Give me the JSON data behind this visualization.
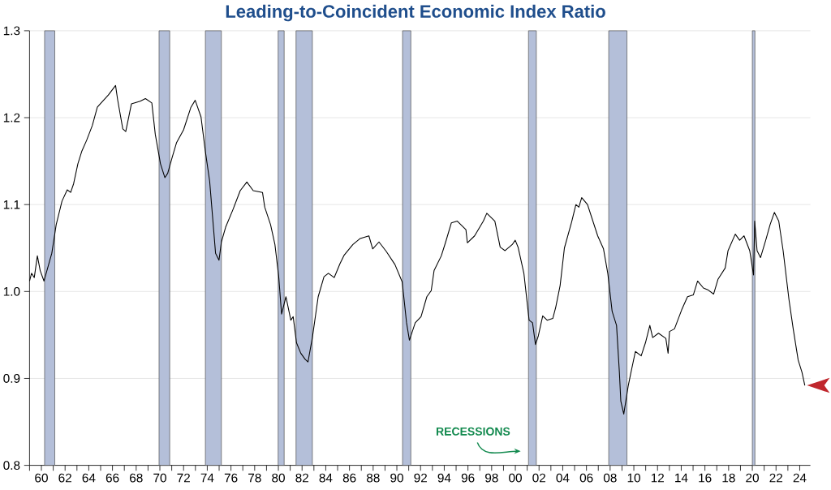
{
  "chart_data": {
    "type": "line",
    "title": "Leading-to-Coincident Economic Index Ratio",
    "color": "#000000",
    "x": [
      1959.0,
      1959.17,
      1959.4,
      1959.66,
      1959.9,
      1960.22,
      1960.88,
      1961.25,
      1961.74,
      1962.18,
      1962.47,
      1962.72,
      1963.08,
      1963.4,
      1963.82,
      1964.3,
      1964.72,
      1965.04,
      1965.65,
      1966.26,
      1966.43,
      1966.87,
      1967.12,
      1967.6,
      1968.34,
      1968.78,
      1969.32,
      1969.61,
      1970.05,
      1970.42,
      1970.66,
      1971.03,
      1971.4,
      1972.0,
      1972.62,
      1972.98,
      1973.47,
      1973.84,
      1974.2,
      1974.7,
      1974.99,
      1975.19,
      1975.55,
      1976.16,
      1976.78,
      1977.34,
      1977.88,
      1978.66,
      1978.85,
      1979.34,
      1979.71,
      1980.03,
      1980.27,
      1980.64,
      1981.05,
      1981.25,
      1981.53,
      1981.89,
      1982.26,
      1982.5,
      1982.87,
      1983.36,
      1983.85,
      1984.22,
      1984.71,
      1985.2,
      1985.56,
      1986.29,
      1986.91,
      1987.64,
      1987.96,
      1988.49,
      1989.11,
      1989.84,
      1990.45,
      1990.82,
      1991.06,
      1991.55,
      1992.04,
      1992.53,
      1992.9,
      1993.14,
      1993.75,
      1994.12,
      1994.6,
      1995.1,
      1995.83,
      1995.95,
      1996.56,
      1997.3,
      1997.59,
      1998.27,
      1998.72,
      1999.13,
      1999.74,
      1999.99,
      2000.23,
      2000.72,
      2001.16,
      2001.45,
      2001.7,
      2001.94,
      2002.31,
      2002.68,
      2003.16,
      2003.41,
      2003.78,
      2004.14,
      2004.75,
      2005.11,
      2005.36,
      2005.6,
      2006.09,
      2006.95,
      2007.44,
      2007.8,
      2008.17,
      2008.54,
      2008.78,
      2008.9,
      2009.15,
      2009.52,
      2009.76,
      2010.13,
      2010.62,
      2010.98,
      2011.35,
      2011.59,
      2012.08,
      2012.7,
      2012.89,
      2013.01,
      2013.43,
      2014.04,
      2014.53,
      2015.02,
      2015.38,
      2015.87,
      2016.24,
      2016.73,
      2017.1,
      2017.71,
      2017.95,
      2018.56,
      2018.93,
      2019.3,
      2019.78,
      2020.1,
      2020.2,
      2020.4,
      2020.69,
      2021.13,
      2021.5,
      2021.86,
      2022.23,
      2022.6,
      2023.09,
      2023.45,
      2023.87,
      2024.19,
      2024.43
    ],
    "values": [
      1.012,
      1.021,
      1.016,
      1.041,
      1.024,
      1.012,
      1.044,
      1.077,
      1.104,
      1.117,
      1.114,
      1.124,
      1.147,
      1.161,
      1.174,
      1.191,
      1.212,
      1.217,
      1.226,
      1.237,
      1.221,
      1.187,
      1.184,
      1.216,
      1.219,
      1.222,
      1.217,
      1.181,
      1.147,
      1.131,
      1.136,
      1.154,
      1.171,
      1.186,
      1.212,
      1.22,
      1.201,
      1.161,
      1.127,
      1.044,
      1.036,
      1.057,
      1.074,
      1.094,
      1.116,
      1.126,
      1.116,
      1.114,
      1.097,
      1.077,
      1.054,
      1.017,
      0.974,
      0.994,
      0.967,
      0.971,
      0.941,
      0.929,
      0.922,
      0.919,
      0.947,
      0.994,
      1.017,
      1.021,
      1.016,
      1.032,
      1.042,
      1.054,
      1.061,
      1.064,
      1.049,
      1.057,
      1.046,
      1.031,
      1.011,
      0.964,
      0.944,
      0.964,
      0.971,
      0.994,
      1.001,
      1.024,
      1.041,
      1.057,
      1.079,
      1.081,
      1.071,
      1.056,
      1.064,
      1.081,
      1.09,
      1.081,
      1.051,
      1.047,
      1.054,
      1.059,
      1.051,
      1.021,
      0.967,
      0.964,
      0.939,
      0.949,
      0.972,
      0.967,
      0.969,
      0.982,
      1.007,
      1.05,
      1.08,
      1.1,
      1.097,
      1.108,
      1.1,
      1.064,
      1.049,
      1.021,
      0.977,
      0.961,
      0.907,
      0.874,
      0.859,
      0.891,
      0.907,
      0.931,
      0.926,
      0.941,
      0.961,
      0.947,
      0.952,
      0.946,
      0.929,
      0.954,
      0.957,
      0.979,
      0.994,
      0.996,
      1.012,
      1.004,
      1.002,
      0.997,
      1.014,
      1.027,
      1.047,
      1.066,
      1.059,
      1.064,
      1.047,
      1.019,
      1.081,
      1.047,
      1.039,
      1.059,
      1.077,
      1.091,
      1.081,
      1.047,
      0.991,
      0.957,
      0.921,
      0.907,
      0.892
    ],
    "xlim": [
      1959.0,
      2024.9
    ],
    "ylim": [
      0.8,
      1.3
    ],
    "xticks": [
      {
        "value": 1959,
        "label": null
      },
      {
        "value": 1960,
        "label": "60"
      },
      {
        "value": 1961,
        "label": null
      },
      {
        "value": 1962,
        "label": "62"
      },
      {
        "value": 1963,
        "label": null
      },
      {
        "value": 1964,
        "label": "64"
      },
      {
        "value": 1965,
        "label": null
      },
      {
        "value": 1966,
        "label": "66"
      },
      {
        "value": 1967,
        "label": null
      },
      {
        "value": 1968,
        "label": "68"
      },
      {
        "value": 1969,
        "label": null
      },
      {
        "value": 1970,
        "label": "70"
      },
      {
        "value": 1971,
        "label": null
      },
      {
        "value": 1972,
        "label": "72"
      },
      {
        "value": 1973,
        "label": null
      },
      {
        "value": 1974,
        "label": "74"
      },
      {
        "value": 1975,
        "label": null
      },
      {
        "value": 1976,
        "label": "76"
      },
      {
        "value": 1977,
        "label": null
      },
      {
        "value": 1978,
        "label": "78"
      },
      {
        "value": 1979,
        "label": null
      },
      {
        "value": 1980,
        "label": "80"
      },
      {
        "value": 1981,
        "label": null
      },
      {
        "value": 1982,
        "label": "82"
      },
      {
        "value": 1983,
        "label": null
      },
      {
        "value": 1984,
        "label": "84"
      },
      {
        "value": 1985,
        "label": null
      },
      {
        "value": 1986,
        "label": "86"
      },
      {
        "value": 1987,
        "label": null
      },
      {
        "value": 1988,
        "label": "88"
      },
      {
        "value": 1989,
        "label": null
      },
      {
        "value": 1990,
        "label": "90"
      },
      {
        "value": 1991,
        "label": null
      },
      {
        "value": 1992,
        "label": "92"
      },
      {
        "value": 1993,
        "label": null
      },
      {
        "value": 1994,
        "label": "94"
      },
      {
        "value": 1995,
        "label": null
      },
      {
        "value": 1996,
        "label": "96"
      },
      {
        "value": 1997,
        "label": null
      },
      {
        "value": 1998,
        "label": "98"
      },
      {
        "value": 1999,
        "label": null
      },
      {
        "value": 2000,
        "label": "00"
      },
      {
        "value": 2001,
        "label": null
      },
      {
        "value": 2002,
        "label": "02"
      },
      {
        "value": 2003,
        "label": null
      },
      {
        "value": 2004,
        "label": "04"
      },
      {
        "value": 2005,
        "label": null
      },
      {
        "value": 2006,
        "label": "06"
      },
      {
        "value": 2007,
        "label": null
      },
      {
        "value": 2008,
        "label": "08"
      },
      {
        "value": 2009,
        "label": null
      },
      {
        "value": 2010,
        "label": "10"
      },
      {
        "value": 2011,
        "label": null
      },
      {
        "value": 2012,
        "label": "12"
      },
      {
        "value": 2013,
        "label": null
      },
      {
        "value": 2014,
        "label": "14"
      },
      {
        "value": 2015,
        "label": null
      },
      {
        "value": 2016,
        "label": "16"
      },
      {
        "value": 2017,
        "label": null
      },
      {
        "value": 2018,
        "label": "18"
      },
      {
        "value": 2019,
        "label": null
      },
      {
        "value": 2020,
        "label": "20"
      },
      {
        "value": 2021,
        "label": null
      },
      {
        "value": 2022,
        "label": "22"
      },
      {
        "value": 2023,
        "label": null
      },
      {
        "value": 2024,
        "label": "24"
      }
    ],
    "yticks": [
      0.8,
      0.9,
      {
        "value": 1,
        "label": "1.0"
      },
      1.1,
      1.2,
      1.3
    ],
    "grid": "y",
    "bands": [
      {
        "axis": "x",
        "from": 1960.27,
        "to": 1961.13,
        "color": "#b4bfd9"
      },
      {
        "axis": "x",
        "from": 1969.93,
        "to": 1970.83,
        "color": "#b4bfd9"
      },
      {
        "axis": "x",
        "from": 1973.84,
        "to": 1975.19,
        "color": "#b4bfd9"
      },
      {
        "axis": "x",
        "from": 1979.98,
        "to": 1980.49,
        "color": "#b4bfd9"
      },
      {
        "axis": "x",
        "from": 1981.49,
        "to": 1982.87,
        "color": "#b4bfd9"
      },
      {
        "axis": "x",
        "from": 1990.48,
        "to": 1991.18,
        "color": "#b4bfd9"
      },
      {
        "axis": "x",
        "from": 2001.11,
        "to": 2001.77,
        "color": "#b4bfd9"
      },
      {
        "axis": "x",
        "from": 2007.88,
        "to": 2009.42,
        "color": "#b4bfd9"
      },
      {
        "axis": "x",
        "from": 2020.0,
        "to": 2020.22,
        "color": "#b4bfd9"
      }
    ],
    "annotations": [
      "RECESSIONS"
    ]
  }
}
